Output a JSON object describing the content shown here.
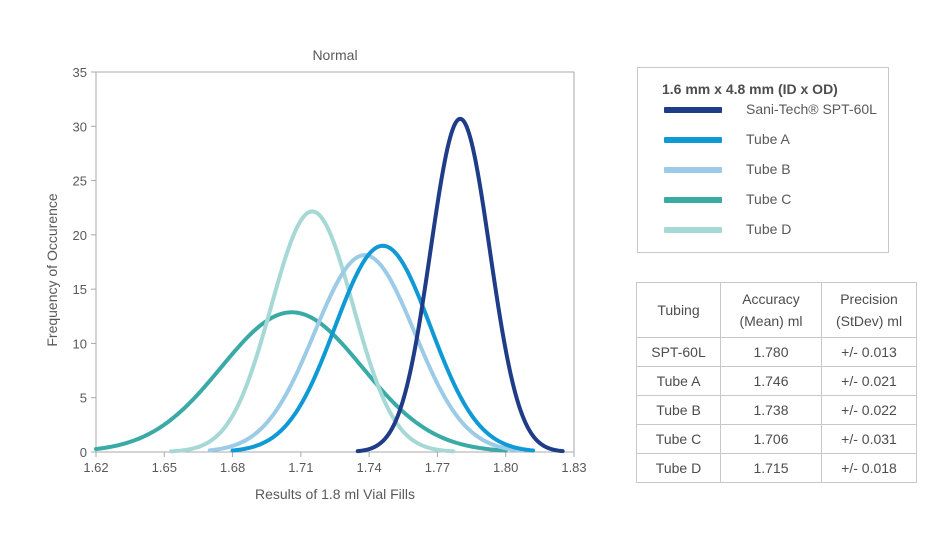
{
  "chart_data": {
    "type": "line",
    "title": "Normal",
    "xlabel": "Results of 1.8 ml Vial Fills",
    "ylabel": "Frequency of Occurence",
    "xlim": [
      1.62,
      1.83
    ],
    "ylim": [
      0,
      35
    ],
    "xticks": [
      "1.62",
      "1.65",
      "1.68",
      "1.71",
      "1.74",
      "1.77",
      "1.80",
      "1.83"
    ],
    "yticks": [
      "0",
      "5",
      "10",
      "15",
      "20",
      "25",
      "30",
      "35"
    ],
    "grid": false,
    "series": [
      {
        "name": "Sani-Tech® SPT-60L",
        "color": "#1f3c88",
        "mean": 1.78,
        "stdev": 0.013,
        "x_range": [
          1.735,
          1.825
        ]
      },
      {
        "name": "Tube A",
        "color": "#0f9ad6",
        "mean": 1.746,
        "stdev": 0.021,
        "x_range": [
          1.68,
          1.812
        ]
      },
      {
        "name": "Tube B",
        "color": "#9ccbe8",
        "mean": 1.738,
        "stdev": 0.022,
        "x_range": [
          1.67,
          1.806
        ]
      },
      {
        "name": "Tube C",
        "color": "#3aaaa6",
        "mean": 1.706,
        "stdev": 0.031,
        "x_range": [
          1.62,
          1.8
        ]
      },
      {
        "name": "Tube D",
        "color": "#a6d8d6",
        "mean": 1.715,
        "stdev": 0.018,
        "x_range": [
          1.653,
          1.777
        ]
      }
    ]
  },
  "legend": {
    "title": "1.6 mm x 4.8 mm (ID x OD)",
    "items": [
      {
        "label": "Sani-Tech® SPT-60L",
        "color": "#1f3c88"
      },
      {
        "label": "Tube A",
        "color": "#0f9ad6"
      },
      {
        "label": "Tube B",
        "color": "#9ccbe8"
      },
      {
        "label": "Tube C",
        "color": "#3aaaa6"
      },
      {
        "label": "Tube D",
        "color": "#a6d8d6"
      }
    ]
  },
  "table": {
    "headers": [
      {
        "line1": "Tubing",
        "line2": ""
      },
      {
        "line1": "Accuracy",
        "line2": "(Mean) ml"
      },
      {
        "line1": "Precision",
        "line2": "(StDev) ml"
      }
    ],
    "rows": [
      [
        "SPT-60L",
        "1.780",
        "+/- 0.013"
      ],
      [
        "Tube A",
        "1.746",
        "+/- 0.021"
      ],
      [
        "Tube B",
        "1.738",
        "+/- 0.022"
      ],
      [
        "Tube C",
        "1.706",
        "+/- 0.031"
      ],
      [
        "Tube D",
        "1.715",
        "+/- 0.018"
      ]
    ]
  }
}
